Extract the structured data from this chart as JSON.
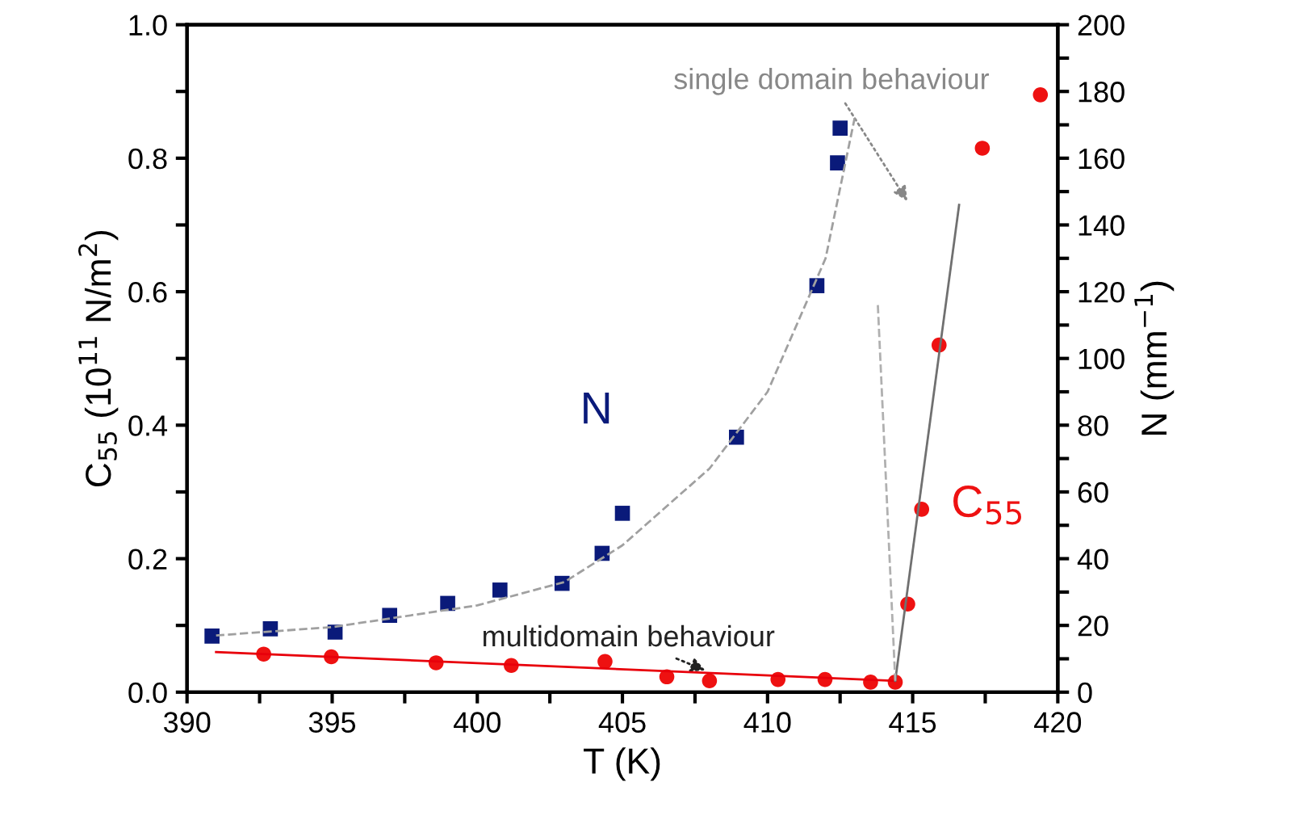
{
  "chart_data": {
    "type": "scatter",
    "xlabel": "T (K)",
    "ylabel": "C$_{55}$ (10$^{11}$ N/m$^{2}$)",
    "y2label": "N (mm$^{−1}$)",
    "xlim": [
      390,
      420
    ],
    "ylim": [
      0,
      1.0
    ],
    "y2lim": [
      0,
      200
    ],
    "xticks": [
      390,
      {
        "value": 392.5,
        "label": null
      },
      395,
      {
        "value": 397.5,
        "label": null
      },
      400,
      {
        "value": 402.5,
        "label": null
      },
      405,
      {
        "value": 407.5,
        "label": null
      },
      410,
      {
        "value": 412.5,
        "label": null
      },
      415,
      {
        "value": 417.5,
        "label": null
      },
      420
    ],
    "yticks": [
      {
        "value": 0,
        "label": "0.0"
      },
      {
        "value": 0.1,
        "label": null
      },
      {
        "value": 0.2,
        "label": "0.2"
      },
      {
        "value": 0.3,
        "label": null
      },
      {
        "value": 0.4,
        "label": "0.4"
      },
      {
        "value": 0.5,
        "label": null
      },
      {
        "value": 0.6,
        "label": "0.6"
      },
      {
        "value": 0.7,
        "label": null
      },
      {
        "value": 0.8,
        "label": "0.8"
      },
      {
        "value": 0.9,
        "label": null
      },
      {
        "value": 1.0,
        "label": "1.0"
      }
    ],
    "y2ticks": [
      0,
      {
        "value": 10,
        "label": null
      },
      20,
      {
        "value": 30,
        "label": null
      },
      40,
      {
        "value": 50,
        "label": null
      },
      60,
      {
        "value": 70,
        "label": null
      },
      80,
      {
        "value": 90,
        "label": null
      },
      100,
      {
        "value": 110,
        "label": null
      },
      120,
      {
        "value": 130,
        "label": null
      },
      140,
      {
        "value": 150,
        "label": null
      },
      160,
      {
        "value": 170,
        "label": null
      },
      180,
      {
        "value": 190,
        "label": null
      },
      200
    ],
    "grid": false,
    "legend": false,
    "series": [
      {
        "type": "line",
        "color": "#e8000b",
        "line_style": "solid",
        "x": [
          391.0,
          414.4
        ],
        "values": [
          0.06,
          0.017
        ]
      },
      {
        "type": "line",
        "color": "#707070",
        "line_style": "solid",
        "x": [
          414.4,
          416.6
        ],
        "values": [
          0.017,
          0.73
        ]
      },
      {
        "type": "line",
        "color": "#b0b0b0",
        "line_style": "dashed",
        "x": [
          413.8,
          414.4
        ],
        "values": [
          0.58,
          0.017
        ]
      },
      {
        "type": "line",
        "axis": "y2",
        "color": "#a0a0a0",
        "line_style": "dashed",
        "x": [
          391,
          395,
          400,
          403,
          405,
          408,
          410,
          412,
          413
        ],
        "values": [
          17,
          19.5,
          26,
          33,
          44,
          67,
          90,
          130,
          172
        ]
      },
      {
        "name": "N",
        "axis": "y2",
        "color": "#0a1a7a",
        "marker": "square",
        "x": [
          390.86,
          392.87,
          395.1,
          396.98,
          398.98,
          400.78,
          402.92,
          404.3,
          405.0,
          408.93,
          411.7,
          412.41,
          412.5
        ],
        "values": [
          16.8,
          19,
          18,
          23,
          26.6,
          30.6,
          32.6,
          41.6,
          53.6,
          76.4,
          121.8,
          158.6,
          169
        ]
      },
      {
        "name": "C$_{55}$",
        "color": "#ee1111",
        "marker": "circle",
        "x": [
          392.64,
          394.97,
          398.58,
          401.17,
          404.4,
          406.53,
          408.0,
          410.36,
          411.98,
          413.55,
          414.4,
          414.83,
          415.31,
          415.91,
          417.4,
          419.4
        ],
        "values": [
          0.057,
          0.053,
          0.044,
          0.04,
          0.046,
          0.023,
          0.017,
          0.019,
          0.019,
          0.015,
          0.015,
          0.132,
          0.274,
          0.52,
          0.815,
          0.895
        ]
      }
    ],
    "annotations": [
      "single domain behaviour",
      {
        "text": "multidomain behaviour",
        "x": 408.0,
        "y": 0.03
      }
    ]
  }
}
